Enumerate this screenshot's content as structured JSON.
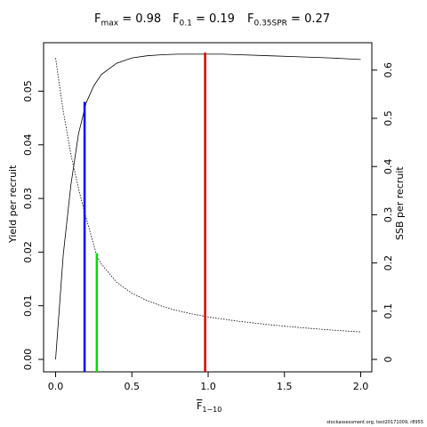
{
  "header": {
    "fmax": {
      "symbol": "F",
      "sub": "max",
      "value": " = 0.98"
    },
    "f01": {
      "symbol": "F",
      "sub": "0.1",
      "value": " = 0.19"
    },
    "f035": {
      "symbol": "F",
      "sub": "0.35SPR",
      "value": " = 0.27"
    }
  },
  "chart_data": {
    "type": "line",
    "xlabel": {
      "symbol": "F",
      "sub": "1−10",
      "overline": true
    },
    "ylabel_left": "Yield per recruit",
    "ylabel_right": "SSB per recruit",
    "xlim": [
      0,
      2.0
    ],
    "ylim_left": [
      0,
      0.057
    ],
    "ylim_right": [
      0,
      0.63
    ],
    "x_ticks": [
      0,
      0.5,
      1.0,
      1.5,
      2.0
    ],
    "x_tick_labels": [
      "0.0",
      "0.5",
      "1.0",
      "1.5",
      "2.0"
    ],
    "y_ticks_left": [
      0,
      0.01,
      0.02,
      0.03,
      0.04,
      0.05
    ],
    "y_tick_labels_left": [
      "0.00",
      "0.01",
      "0.02",
      "0.03",
      "0.04",
      "0.05"
    ],
    "y_ticks_right": [
      0,
      0.1,
      0.2,
      0.3,
      0.4,
      0.5,
      0.6
    ],
    "y_tick_labels_right": [
      "0",
      "0.1",
      "0.2",
      "0.3",
      "0.4",
      "0.5",
      "0.6"
    ],
    "grid": false,
    "series": [
      {
        "axis": "left",
        "style": "solid",
        "x": [
          0,
          0.05,
          0.1,
          0.15,
          0.2,
          0.25,
          0.3,
          0.4,
          0.5,
          0.6,
          0.7,
          0.8,
          0.9,
          0.98,
          1.1,
          1.2,
          1.4,
          1.6,
          1.8,
          2.0
        ],
        "y": [
          0,
          0.0195,
          0.0325,
          0.042,
          0.0478,
          0.051,
          0.0531,
          0.0552,
          0.0562,
          0.0566,
          0.0568,
          0.0569,
          0.0569,
          0.0569,
          0.0569,
          0.0568,
          0.0566,
          0.0564,
          0.0562,
          0.0559
        ]
      },
      {
        "axis": "right",
        "style": "dotted",
        "x": [
          0,
          0.05,
          0.1,
          0.15,
          0.19,
          0.27,
          0.3,
          0.4,
          0.5,
          0.6,
          0.7,
          0.8,
          0.9,
          1.0,
          1.2,
          1.4,
          1.6,
          1.8,
          2.0
        ],
        "y": [
          0.625,
          0.515,
          0.425,
          0.355,
          0.305,
          0.215,
          0.198,
          0.16,
          0.137,
          0.122,
          0.11,
          0.101,
          0.094,
          0.088,
          0.079,
          0.072,
          0.066,
          0.061,
          0.057
        ]
      }
    ],
    "reference_lines": [
      {
        "x": 0.19,
        "y_top": 0.048,
        "color": "#0000ff"
      },
      {
        "x": 0.27,
        "y_top": 0.0198,
        "color": "#00dd00"
      },
      {
        "x": 0.98,
        "y_top": 0.0572,
        "color": "#dd0000"
      }
    ]
  },
  "footer": "stockassessment.org, test20171009, r8955"
}
